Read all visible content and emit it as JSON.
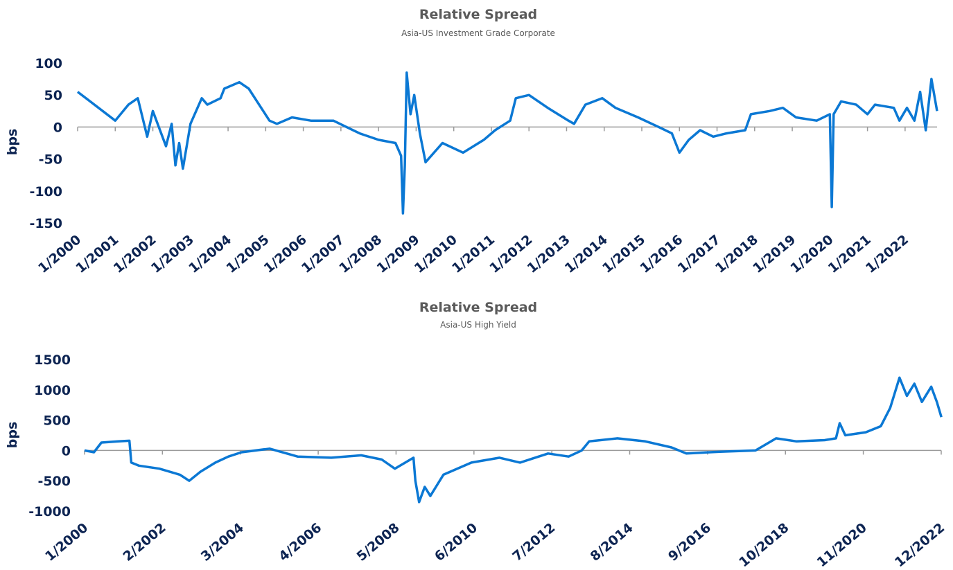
{
  "chart_data": [
    {
      "type": "line",
      "title": "Relative Spread",
      "subtitle": "Asia-US Investment Grade Corporate",
      "y_label": "bps",
      "xlim": [
        2000,
        2022.85
      ],
      "xticks": [
        {
          "value": 2000,
          "label": "1/2000"
        },
        {
          "value": 2001,
          "label": "1/2001"
        },
        {
          "value": 2002,
          "label": "1/2002"
        },
        {
          "value": 2003,
          "label": "1/2003"
        },
        {
          "value": 2004,
          "label": "1/2004"
        },
        {
          "value": 2005,
          "label": "1/2005"
        },
        {
          "value": 2006,
          "label": "1/2006"
        },
        {
          "value": 2007,
          "label": "1/2007"
        },
        {
          "value": 2008,
          "label": "1/2008"
        },
        {
          "value": 2009,
          "label": "1/2009"
        },
        {
          "value": 2010,
          "label": "1/2010"
        },
        {
          "value": 2011,
          "label": "1/2011"
        },
        {
          "value": 2012,
          "label": "1/2012"
        },
        {
          "value": 2013,
          "label": "1/2013"
        },
        {
          "value": 2014,
          "label": "1/2014"
        },
        {
          "value": 2015,
          "label": "1/2015"
        },
        {
          "value": 2016,
          "label": "1/2016"
        },
        {
          "value": 2017,
          "label": "1/2017"
        },
        {
          "value": 2018,
          "label": "1/2018"
        },
        {
          "value": 2019,
          "label": "1/2019"
        },
        {
          "value": 2020,
          "label": "1/2020"
        },
        {
          "value": 2021,
          "label": "1/2021"
        },
        {
          "value": 2022,
          "label": "1/2022"
        }
      ],
      "ylim": [
        -150,
        100
      ],
      "yticks": [
        -150,
        -100,
        -50,
        0,
        50,
        100
      ],
      "series": [
        {
          "color": "#0b78d4",
          "x": [
            2000.0,
            2001.0,
            2001.35,
            2001.6,
            2001.85,
            2002.0,
            2002.35,
            2002.5,
            2002.6,
            2002.7,
            2002.8,
            2003.0,
            2003.3,
            2003.45,
            2003.8,
            2003.9,
            2004.3,
            2004.55,
            2005.1,
            2005.3,
            2005.7,
            2006.2,
            2006.8,
            2007.15,
            2007.5,
            2008.0,
            2008.45,
            2008.6,
            2008.65,
            2008.7,
            2008.75,
            2008.85,
            2008.95,
            2009.1,
            2009.25,
            2009.7,
            2010.25,
            2010.8,
            2011.1,
            2011.5,
            2011.65,
            2012.0,
            2012.5,
            2013.05,
            2013.2,
            2013.5,
            2013.95,
            2014.3,
            2014.9,
            2015.45,
            2015.8,
            2016.0,
            2016.25,
            2016.55,
            2016.9,
            2017.25,
            2017.75,
            2017.9,
            2018.4,
            2018.75,
            2019.1,
            2019.65,
            2020.0,
            2020.05,
            2020.1,
            2020.3,
            2020.7,
            2021.0,
            2021.2,
            2021.7,
            2021.85,
            2022.05,
            2022.25,
            2022.4,
            2022.55,
            2022.7,
            2022.85
          ],
          "values": [
            55,
            10,
            35,
            45,
            -15,
            25,
            -30,
            5,
            -60,
            -25,
            -65,
            5,
            45,
            35,
            45,
            60,
            70,
            60,
            10,
            5,
            15,
            10,
            10,
            0,
            -10,
            -20,
            -25,
            -45,
            -135,
            -60,
            85,
            20,
            50,
            -10,
            -55,
            -25,
            -40,
            -20,
            -5,
            10,
            45,
            50,
            30,
            10,
            5,
            35,
            45,
            30,
            15,
            0,
            -10,
            -40,
            -20,
            -5,
            -15,
            -10,
            -5,
            20,
            25,
            30,
            15,
            10,
            20,
            -125,
            20,
            40,
            35,
            20,
            35,
            30,
            10,
            30,
            10,
            55,
            -5,
            75,
            25
          ]
        }
      ]
    },
    {
      "type": "line",
      "title": "Relative Spread",
      "subtitle": "Asia-US High Yield",
      "y_label": "bps",
      "xlim": [
        2000,
        2022.917
      ],
      "xticks": [
        {
          "value": 2000,
          "label": "1/2000"
        },
        {
          "value": 2002.083,
          "label": "2/2002"
        },
        {
          "value": 2004.167,
          "label": "3/2004"
        },
        {
          "value": 2006.25,
          "label": "4/2006"
        },
        {
          "value": 2008.333,
          "label": "5/2008"
        },
        {
          "value": 2010.417,
          "label": "6/2010"
        },
        {
          "value": 2012.5,
          "label": "7/2012"
        },
        {
          "value": 2014.583,
          "label": "8/2014"
        },
        {
          "value": 2016.667,
          "label": "9/2016"
        },
        {
          "value": 2018.75,
          "label": "10/2018"
        },
        {
          "value": 2020.833,
          "label": "11/2020"
        },
        {
          "value": 2022.917,
          "label": "12/2022"
        }
      ],
      "ylim": [
        -1000,
        1500
      ],
      "yticks": [
        -1000,
        -500,
        0,
        500,
        1000,
        1500
      ],
      "series": [
        {
          "color": "#0b78d4",
          "x": [
            2000.0,
            2000.25,
            2000.45,
            2000.9,
            2001.2,
            2001.25,
            2001.45,
            2002.0,
            2002.55,
            2002.8,
            2003.1,
            2003.5,
            2003.85,
            2004.2,
            2004.95,
            2005.7,
            2006.6,
            2007.4,
            2007.95,
            2008.3,
            2008.8,
            2008.85,
            2008.95,
            2009.1,
            2009.25,
            2009.6,
            2010.35,
            2011.1,
            2011.65,
            2012.4,
            2012.95,
            2013.3,
            2013.5,
            2014.25,
            2015.0,
            2015.7,
            2016.1,
            2017.0,
            2017.95,
            2018.5,
            2019.05,
            2019.8,
            2020.1,
            2020.2,
            2020.35,
            2020.9,
            2021.3,
            2021.55,
            2021.8,
            2022.0,
            2022.2,
            2022.4,
            2022.65,
            2022.8,
            2022.92
          ],
          "values": [
            0,
            -30,
            130,
            150,
            160,
            -200,
            -250,
            -300,
            -400,
            -500,
            -350,
            -200,
            -100,
            -30,
            30,
            -100,
            -120,
            -80,
            -150,
            -300,
            -120,
            -500,
            -850,
            -600,
            -750,
            -400,
            -200,
            -120,
            -200,
            -50,
            -100,
            0,
            150,
            200,
            150,
            50,
            -50,
            -20,
            0,
            200,
            150,
            170,
            200,
            450,
            250,
            300,
            400,
            700,
            1200,
            900,
            1100,
            800,
            1050,
            800,
            550
          ]
        }
      ]
    }
  ]
}
